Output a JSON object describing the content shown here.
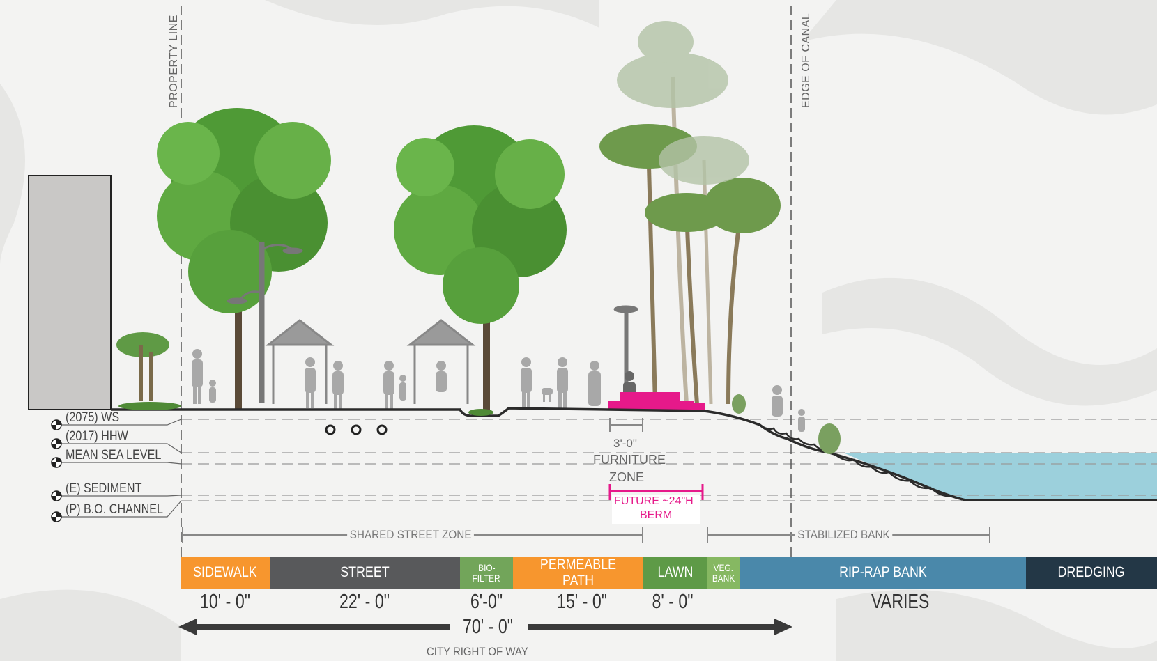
{
  "vertical_labels": {
    "property_line": "PROPERTY LINE",
    "edge_of_canal": "EDGE OF CANAL"
  },
  "elevations": [
    {
      "label": "(2075) WS"
    },
    {
      "label": "(2017) HHW"
    },
    {
      "label": "MEAN SEA LEVEL"
    },
    {
      "label": "(E) SEDIMENT"
    },
    {
      "label": "(P) B.O. CHANNEL"
    }
  ],
  "furniture_zone": {
    "dim": "3'-0\"",
    "label_line1": "FURNITURE",
    "label_line2": "ZONE"
  },
  "berm": {
    "line1": "FUTURE ~24\"H",
    "line2": "BERM"
  },
  "zones": {
    "shared_street": "SHARED STREET ZONE",
    "stabilized_bank": "STABILIZED BANK"
  },
  "segments": [
    {
      "label": "SIDEWALK",
      "dim": "10' - 0\"",
      "color": "#f7962e"
    },
    {
      "label": "STREET",
      "dim": "22' - 0\"",
      "color": "#58595b"
    },
    {
      "label": "BIO-",
      "label2": "FILTER",
      "dim": "6'-0\"",
      "color": "#72a55a"
    },
    {
      "label": "PERMEABLE PATH",
      "dim": "15' - 0\"",
      "color": "#f7962e"
    },
    {
      "label": "LAWN",
      "dim": "8' - 0\"",
      "color": "#5e9a47"
    },
    {
      "label": "VEG.",
      "label2": "BANK",
      "color": "#86b862"
    },
    {
      "label": "RIP-RAP BANK",
      "dim": "VARIES",
      "color": "#4a88aa"
    },
    {
      "label": "DREDGING",
      "color": "#233746"
    }
  ],
  "total": {
    "dim": "70' - 0\"",
    "label": "CITY RIGHT OF WAY"
  },
  "colors": {
    "berm": "#e6198a",
    "water": "#9cd0dc",
    "ground": "#2b2b2b",
    "tree": "#4f9a36",
    "palm": "#6e9a4c",
    "people": "#a8a8a8"
  }
}
